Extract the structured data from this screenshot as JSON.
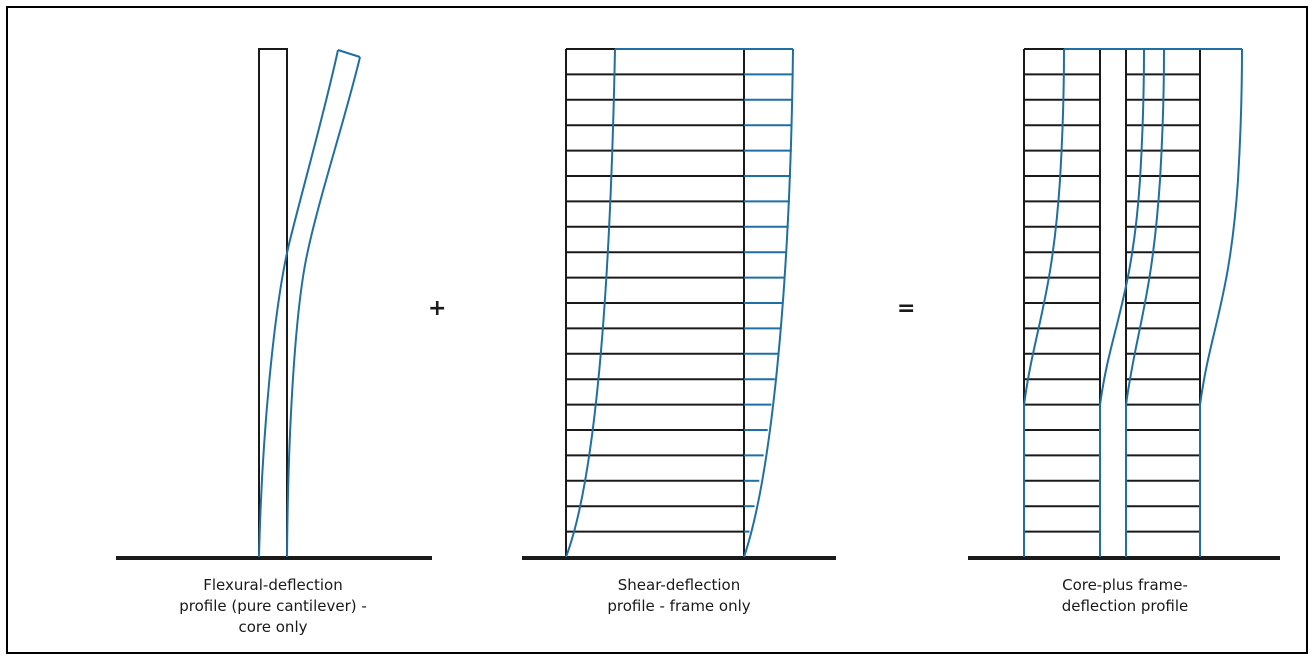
{
  "figure": {
    "panels": [
      {
        "id": "flexural",
        "caption": [
          "Flexural-deflection",
          "profile (pure cantilever) -",
          "core only"
        ]
      },
      {
        "id": "shear",
        "caption": [
          "Shear-deflection",
          "profile - frame only"
        ]
      },
      {
        "id": "combined",
        "caption": [
          "Core-plus frame-",
          "deflection profile"
        ]
      }
    ],
    "operators": {
      "plus": "+",
      "equals": "="
    },
    "storeys": 20,
    "colors": {
      "structure": "#1a1a1a",
      "deflected": "#1f6fa3",
      "ground": "#1a1a1a",
      "border": "#000000"
    }
  }
}
